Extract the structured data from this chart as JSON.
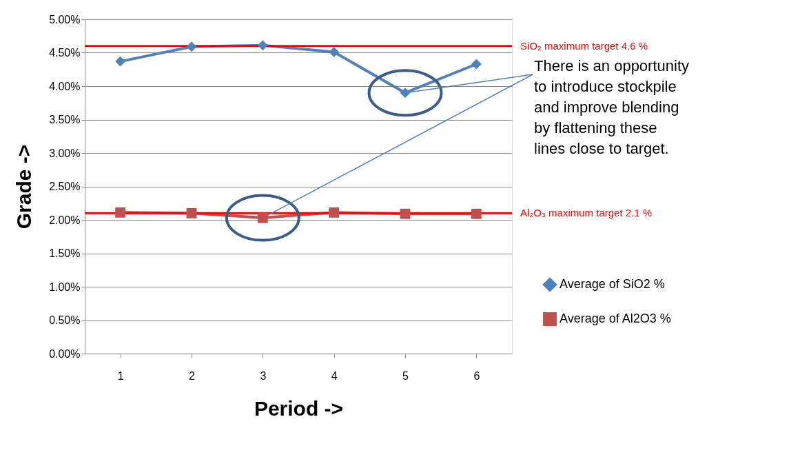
{
  "chart_data": {
    "type": "line",
    "xlabel": "Period ->",
    "ylabel": "Grade ->",
    "categories": [
      "1",
      "2",
      "3",
      "4",
      "5",
      "6"
    ],
    "series": [
      {
        "name": "Average of SiO2 %",
        "color": "#4f81bd",
        "marker": "diamond",
        "values": [
          4.37,
          4.59,
          4.61,
          4.51,
          3.9,
          4.33
        ]
      },
      {
        "name": "Average of Al2O3 %",
        "color": "#c0504d",
        "marker": "square",
        "values": [
          2.11,
          2.1,
          2.03,
          2.11,
          2.09,
          2.09
        ]
      }
    ],
    "ylim": [
      0,
      5
    ],
    "yticks": [
      {
        "value": 0,
        "label": "0.00%"
      },
      {
        "value": 0.5,
        "label": "0.50%"
      },
      {
        "value": 1,
        "label": "1.00%"
      },
      {
        "value": 1.5,
        "label": "1.50%"
      },
      {
        "value": 2,
        "label": "2.00%"
      },
      {
        "value": 2.5,
        "label": "2.50%"
      },
      {
        "value": 3,
        "label": "3.00%"
      },
      {
        "value": 3.5,
        "label": "3.50%"
      },
      {
        "value": 4,
        "label": "4.00%"
      },
      {
        "value": 4.5,
        "label": "4.50%"
      },
      {
        "value": 5,
        "label": "5.00%"
      }
    ],
    "ref_lines": [
      {
        "axis": "y",
        "value": 4.6,
        "label": "SiO₂ maximum target 4.6 %",
        "color": "#ff0000"
      },
      {
        "axis": "y",
        "value": 2.1,
        "label": "Al₂O₃ maximum target 2.1 %",
        "color": "#ff0000"
      }
    ],
    "annotations": [
      {
        "text": "There is an opportunity\nto introduce stockpile\nand improve blending\nby flattening these\nlines close to target.",
        "x": "5",
        "y": 3.9
      }
    ],
    "grid": "y",
    "legend": "right",
    "line_style": "solid"
  }
}
